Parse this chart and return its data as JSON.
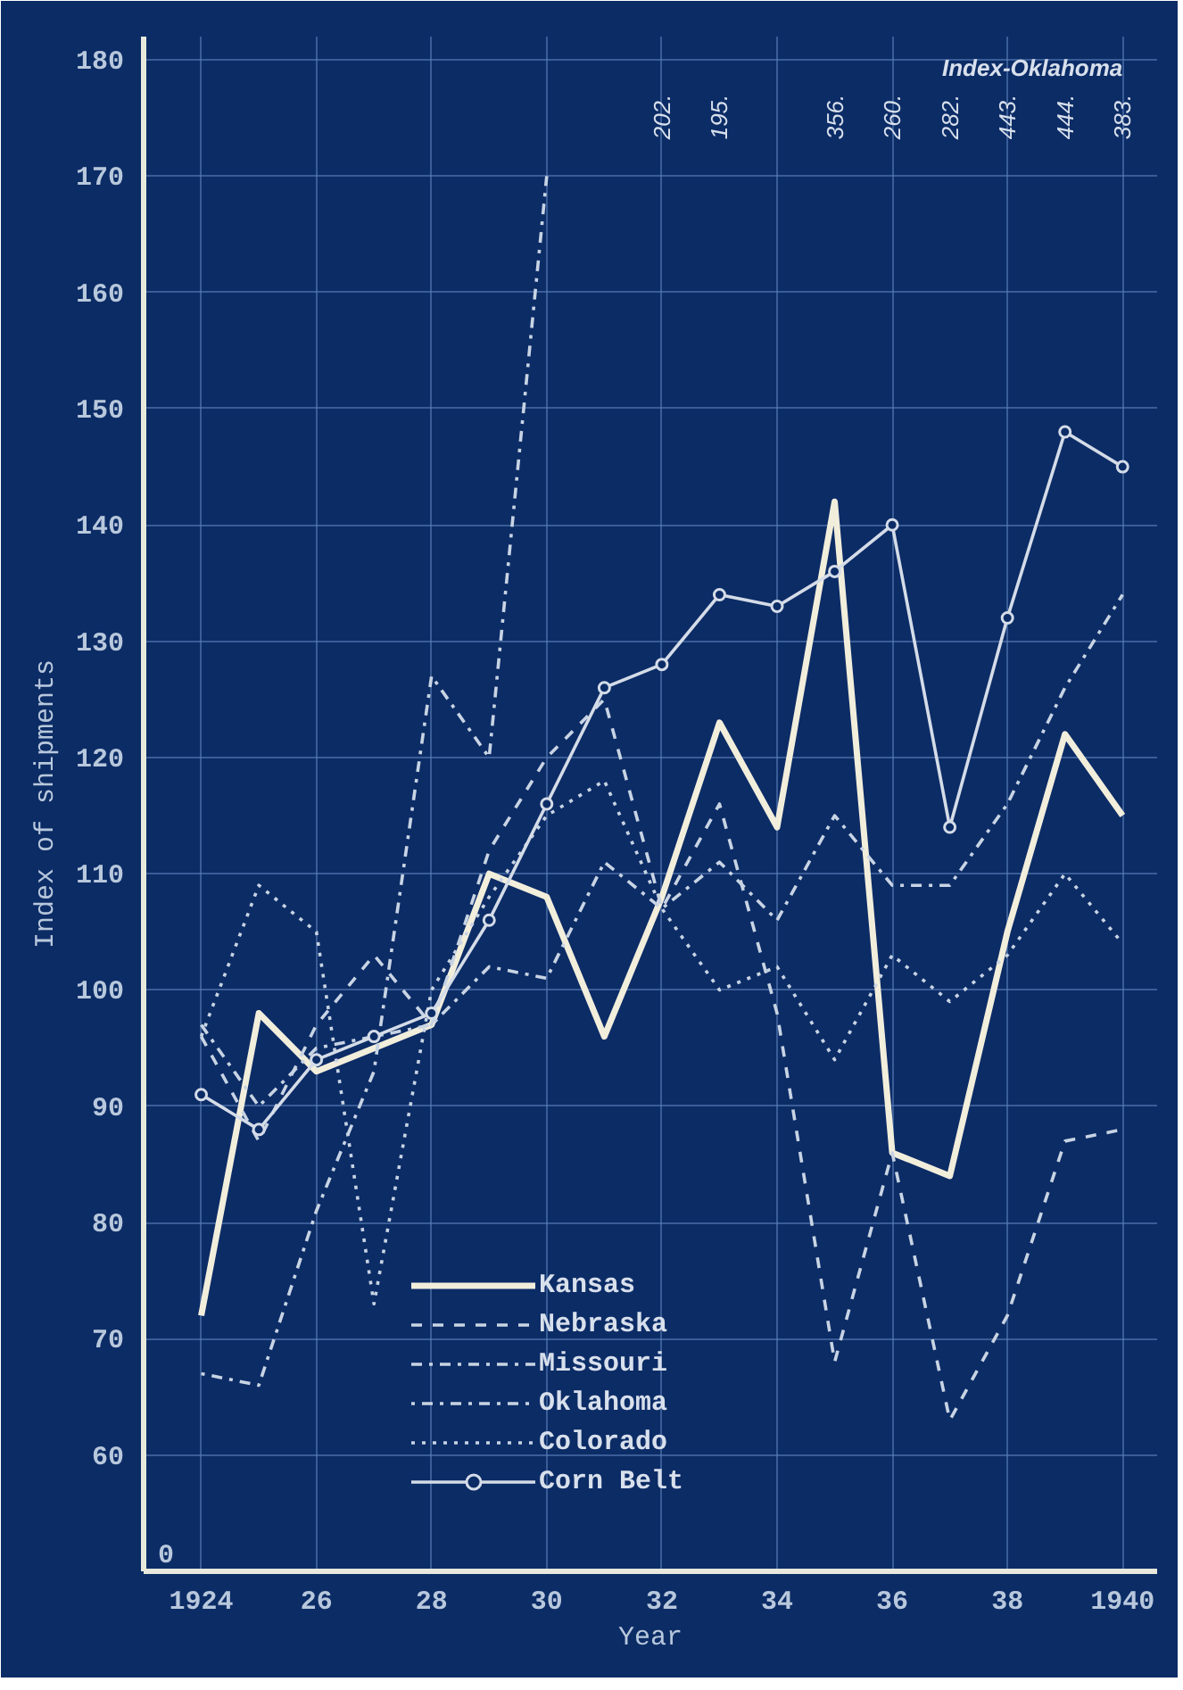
{
  "chart_data": {
    "type": "line",
    "xlabel": "Year",
    "ylabel": "Index of shipments",
    "x": [
      1924,
      1925,
      1926,
      1927,
      1928,
      1929,
      1930,
      1931,
      1932,
      1933,
      1934,
      1935,
      1936,
      1937,
      1938,
      1939,
      1940
    ],
    "xlim": [
      1923,
      1940.6
    ],
    "xticks": [
      {
        "value": 1924,
        "label": "1924"
      },
      {
        "value": 1926,
        "label": "26"
      },
      {
        "value": 1928,
        "label": "28"
      },
      {
        "value": 1930,
        "label": "30"
      },
      {
        "value": 1932,
        "label": "32"
      },
      {
        "value": 1934,
        "label": "34"
      },
      {
        "value": 1936,
        "label": "36"
      },
      {
        "value": 1938,
        "label": "38"
      },
      {
        "value": 1940,
        "label": "1940"
      }
    ],
    "ylim": [
      50,
      182
    ],
    "yticks": [
      60,
      70,
      80,
      90,
      100,
      110,
      120,
      130,
      140,
      150,
      160,
      170,
      180
    ],
    "grid": true,
    "legend": "bottom",
    "marker": "none",
    "series": [
      {
        "name": "Kansas",
        "color": "#f2eedc",
        "line_style": "solid",
        "values": [
          72,
          98,
          93,
          95,
          97,
          110,
          108,
          96,
          108,
          123,
          114,
          142,
          86,
          84,
          105,
          122,
          115
        ]
      },
      {
        "name": "Nebraska",
        "color": "#c8d4e4",
        "line_style": "dashed",
        "values": [
          96,
          87,
          97,
          103,
          97,
          112,
          120,
          125,
          107,
          116,
          98,
          68,
          86,
          63,
          72,
          87,
          88
        ]
      },
      {
        "name": "Missouri",
        "color": "#c8d4e4",
        "line_style": "dashdot",
        "values": [
          97,
          90,
          95,
          96,
          97,
          102,
          101,
          111,
          107,
          111,
          106,
          115,
          109,
          109,
          116,
          126,
          134
        ]
      },
      {
        "name": "Oklahoma",
        "color": "#c8d4e4",
        "line_style": "dotdash",
        "values": [
          67,
          66,
          81,
          93,
          127,
          120,
          170,
          null,
          null,
          null,
          null,
          null,
          null,
          null,
          null,
          null,
          null
        ],
        "value_labels": [
          null,
          null,
          null,
          null,
          null,
          null,
          null,
          null,
          "202.",
          "195.",
          null,
          "356.",
          "260.",
          "282.",
          "443.",
          "444.",
          "383."
        ]
      },
      {
        "name": "Colorado",
        "color": "#c8d4e4",
        "line_style": "dotted",
        "values": [
          96,
          109,
          105,
          73,
          100,
          108,
          115,
          118,
          107,
          100,
          102,
          94,
          103,
          99,
          103,
          110,
          104
        ]
      },
      {
        "name": "Corn Belt",
        "color": "#d4dce8",
        "line_style": "solid",
        "marker": "circle",
        "values": [
          91,
          88,
          94,
          96,
          98,
          106,
          116,
          126,
          128,
          134,
          133,
          136,
          140,
          114,
          132,
          148,
          145
        ]
      }
    ],
    "annotations": [
      "Index-Oklahoma",
      "0"
    ]
  }
}
